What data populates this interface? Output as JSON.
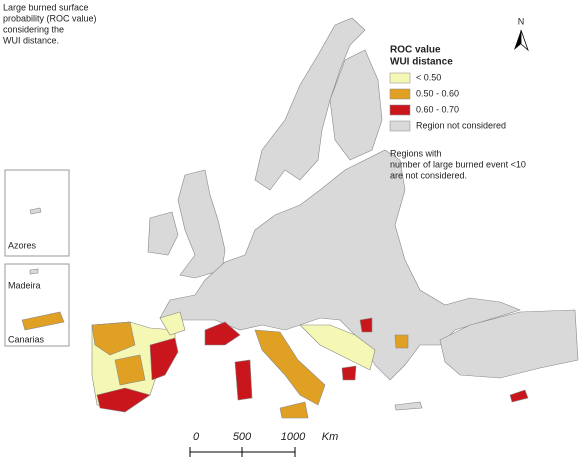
{
  "title": {
    "lines": [
      "Large burned surface",
      "probability (ROC value)",
      "considering the",
      "WUI distance."
    ]
  },
  "legend": {
    "title_lines": [
      "ROC value",
      "WUI distance"
    ],
    "items": [
      {
        "label": "< 0.50",
        "color": "#f4f8b4"
      },
      {
        "label": "0.50 - 0.60",
        "color": "#e0a024"
      },
      {
        "label": "0.60 - 0.70",
        "color": "#c9161c"
      },
      {
        "label": "Region not considered",
        "color": "#d9d9d9"
      }
    ]
  },
  "note": {
    "lines": [
      "Regions with",
      "number of large burned event <10",
      "are not considered."
    ]
  },
  "north": "N",
  "insets": [
    "Azores",
    "Madeira",
    "Canarias"
  ],
  "scale_bar": {
    "labels": [
      "0",
      "500",
      "1000"
    ],
    "unit": "Km"
  }
}
